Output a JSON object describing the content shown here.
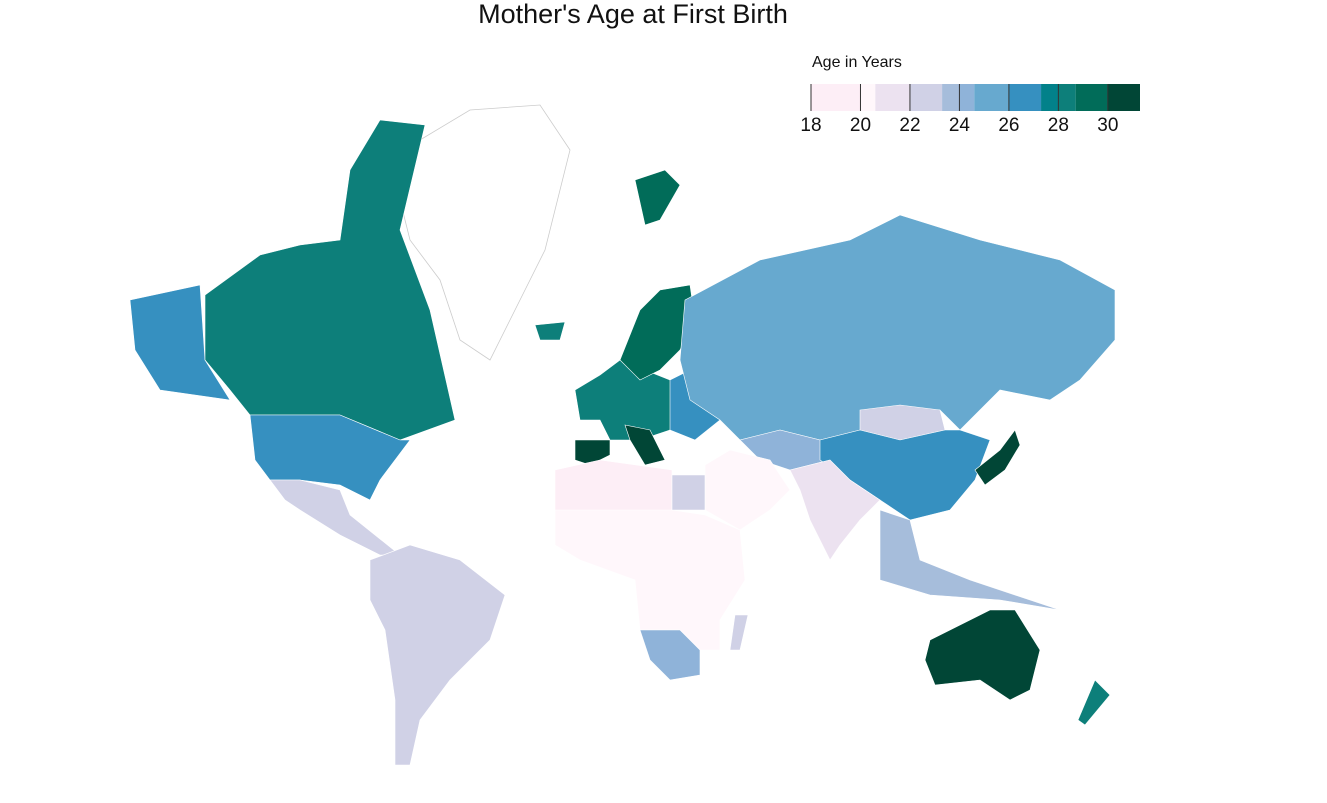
{
  "chart_data": {
    "type": "choropleth",
    "title": "Mother's Age at First Birth",
    "legend": {
      "title": "Age in Years",
      "range": [
        18,
        31.3
      ],
      "ticks": [
        18,
        20,
        22,
        24,
        26,
        28,
        30
      ],
      "breaks": [
        18,
        20,
        20.6,
        22,
        23.3,
        24,
        24.6,
        26,
        27.3,
        28,
        28.7,
        30,
        31.3
      ],
      "colors": [
        "#fdeef6",
        "#fff7fb",
        "#ece2f0",
        "#d0d1e6",
        "#a6bddb",
        "#8fb3d9",
        "#67a9cf",
        "#3690c0",
        "#02818a",
        "#0d7f7a",
        "#016c59",
        "#014636"
      ]
    },
    "values": [
      26.5,
      28,
      26.5,
      22.5,
      22.5,
      28,
      28.5,
      29,
      30.5,
      30,
      26,
      25,
      24,
      22.5,
      26.5,
      21,
      20,
      19.5,
      20.5,
      24,
      23,
      23,
      23.5,
      30.5,
      30.5,
      28,
      29
    ]
  }
}
